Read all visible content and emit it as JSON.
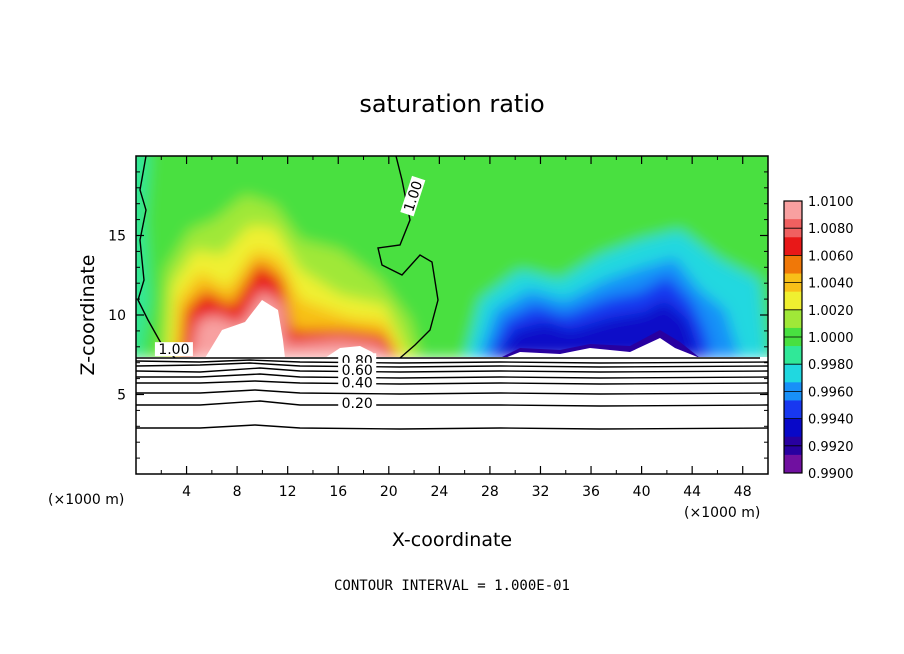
{
  "chart_data": {
    "type": "heatmap",
    "title": "saturation ratio",
    "xlabel": "X-coordinate",
    "ylabel": "Z-coordinate",
    "x_unit_left": "(×1000 m)",
    "x_unit_right": "(×1000 m)",
    "xlim": [
      0,
      50
    ],
    "ylim": [
      0,
      20
    ],
    "x_ticks": [
      "4",
      "8",
      "12",
      "16",
      "20",
      "24",
      "28",
      "32",
      "36",
      "40",
      "44",
      "48"
    ],
    "x_tick_values": [
      4,
      8,
      12,
      16,
      20,
      24,
      28,
      32,
      36,
      40,
      44,
      48
    ],
    "y_ticks": [
      "5",
      "10",
      "15"
    ],
    "y_tick_values": [
      5,
      10,
      15
    ],
    "colorbar": {
      "labels": [
        "1.0100",
        "1.0080",
        "1.0060",
        "1.0040",
        "1.0020",
        "1.0000",
        "0.9980",
        "0.9960",
        "0.9940",
        "0.9920",
        "0.9900"
      ],
      "values": [
        1.01,
        1.008,
        1.006,
        1.004,
        1.002,
        1.0,
        0.998,
        0.996,
        0.994,
        0.992,
        0.99
      ],
      "colors": [
        "#f8a0a0",
        "#f06060",
        "#e81818",
        "#f07808",
        "#f8c018",
        "#f0f030",
        "#a0e838",
        "#48e040",
        "#30e898",
        "#20d8e0",
        "#1890f8",
        "#1838f0",
        "#0808c8",
        "#2800a0",
        "#7010a0"
      ]
    },
    "contour_labels": [
      {
        "text": "1.00",
        "x": 22.2,
        "z": 17.4
      },
      {
        "text": "1.00",
        "x": 3.0,
        "z": 7.6
      },
      {
        "text": "0.80",
        "x": 17.5,
        "z": 6.9
      },
      {
        "text": "0.60",
        "x": 17.5,
        "z": 6.3
      },
      {
        "text": "0.40",
        "x": 17.5,
        "z": 5.5
      },
      {
        "text": "0.20",
        "x": 17.5,
        "z": 4.2
      }
    ],
    "contour_interval": "CONTOUR INTERVAL = 1.000E-01"
  }
}
